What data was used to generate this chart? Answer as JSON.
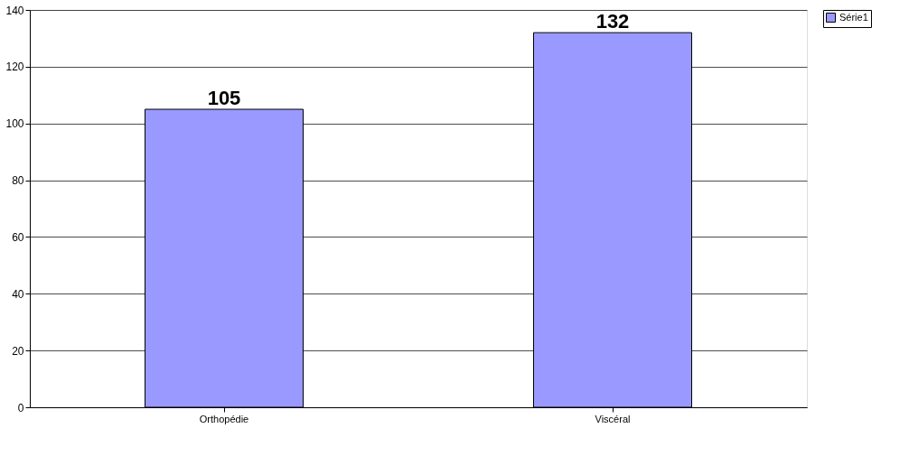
{
  "chart_data": {
    "type": "bar",
    "categories": [
      "Orthopédie",
      "Viscéral"
    ],
    "series": [
      {
        "name": "Série1",
        "color": "#9999ff",
        "values": [
          105,
          132
        ]
      }
    ],
    "ylim": [
      0,
      140
    ],
    "yticks": [
      0,
      20,
      40,
      60,
      80,
      100,
      120,
      140
    ],
    "grid": "y",
    "legend": "right",
    "data_labels": true
  }
}
